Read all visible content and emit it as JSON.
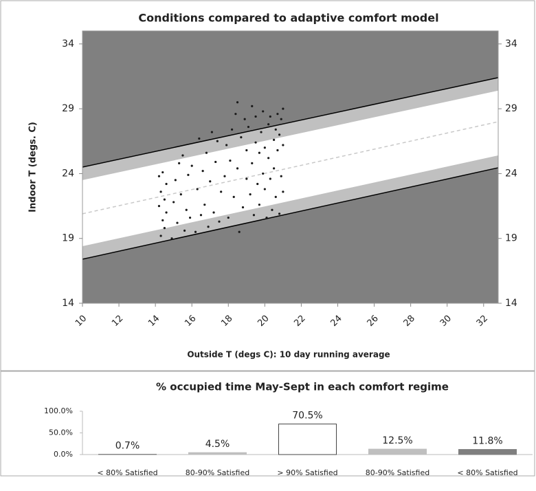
{
  "chart_data": [
    {
      "type": "scatter",
      "title": "Conditions compared to adaptive comfort model",
      "xlabel": "Outside T (degs C): 10 day running average",
      "ylabel": "Indoor T (degs. C)",
      "xlim": [
        10,
        32.8
      ],
      "ylim": [
        14,
        35
      ],
      "xticks": [
        10,
        12,
        14,
        16,
        18,
        20,
        22,
        24,
        26,
        28,
        30,
        32
      ],
      "yticks": [
        14,
        19,
        24,
        29,
        34
      ],
      "y2lim": [
        14,
        35
      ],
      "y2ticks": [
        14,
        19,
        24,
        29,
        34
      ],
      "grid": false,
      "color": "#1a1a1a",
      "band_x": [
        10,
        32.8
      ],
      "bands": [
        {
          "color": "#808080",
          "lower": [
            24.5,
            31.4
          ],
          "upper": [
            35,
            35
          ]
        },
        {
          "color": "#c0c0c0",
          "lower": [
            23.5,
            30.4
          ],
          "upper": [
            24.5,
            31.4
          ]
        },
        {
          "color": "#c0c0c0",
          "lower": [
            17.4,
            24.45
          ],
          "upper": [
            18.4,
            25.4
          ]
        },
        {
          "color": "#808080",
          "lower": [
            14,
            14
          ],
          "upper": [
            17.4,
            24.45
          ]
        }
      ],
      "lines": [
        {
          "color": "#000000",
          "dashed": false,
          "values": [
            24.5,
            31.4
          ]
        },
        {
          "color": "#000000",
          "dashed": false,
          "values": [
            17.4,
            24.45
          ]
        },
        {
          "color": "#c8c8c8",
          "dashed": true,
          "values": [
            20.9,
            28.0
          ]
        }
      ],
      "x": [
        14.2,
        14.2,
        14.3,
        14.3,
        14.4,
        14.4,
        14.5,
        14.5,
        14.6,
        14.6,
        14.9,
        15.0,
        15.1,
        15.2,
        15.3,
        15.4,
        15.5,
        15.6,
        15.7,
        15.8,
        15.9,
        16.0,
        16.2,
        16.3,
        16.4,
        16.5,
        16.6,
        16.7,
        16.8,
        16.9,
        17.0,
        17.1,
        17.2,
        17.3,
        17.4,
        17.5,
        17.6,
        17.8,
        17.9,
        18.0,
        18.1,
        18.2,
        18.3,
        18.4,
        18.5,
        18.5,
        18.6,
        18.7,
        18.8,
        18.9,
        19.0,
        19.0,
        19.1,
        19.2,
        19.3,
        19.3,
        19.4,
        19.5,
        19.5,
        19.6,
        19.7,
        19.7,
        19.8,
        19.9,
        19.9,
        20.0,
        20.0,
        20.1,
        20.2,
        20.2,
        20.3,
        20.3,
        20.4,
        20.5,
        20.5,
        20.6,
        20.6,
        20.7,
        20.7,
        20.8,
        20.8,
        20.9,
        20.9,
        21.0,
        21.0,
        21.0
      ],
      "values": [
        23.8,
        21.5,
        19.2,
        22.6,
        20.4,
        24.1,
        19.8,
        22.0,
        23.2,
        21.0,
        19.0,
        21.8,
        23.5,
        20.2,
        24.8,
        22.4,
        25.4,
        19.6,
        21.2,
        23.9,
        20.6,
        24.6,
        19.5,
        22.8,
        26.7,
        20.8,
        24.2,
        21.6,
        25.6,
        19.9,
        23.4,
        27.2,
        21.0,
        24.9,
        26.5,
        20.3,
        22.6,
        23.8,
        26.2,
        20.6,
        25.0,
        27.4,
        22.2,
        28.6,
        29.5,
        24.4,
        19.5,
        26.8,
        21.4,
        28.2,
        23.6,
        25.8,
        27.6,
        22.4,
        29.2,
        24.8,
        20.8,
        26.4,
        28.4,
        23.2,
        25.6,
        21.6,
        27.2,
        24.0,
        28.8,
        22.8,
        26.0,
        20.6,
        27.8,
        25.2,
        23.6,
        28.4,
        21.2,
        26.6,
        24.4,
        27.4,
        22.2,
        28.6,
        25.8,
        20.9,
        27.0,
        23.8,
        28.2,
        26.2,
        22.6,
        29.0
      ]
    },
    {
      "type": "bar",
      "title": "% occupied time May-Sept in each comfort regime",
      "categories": [
        "< 80% Satisfied",
        "80-90% Satisfied",
        "> 90% Satisfied",
        "80-90% Satisfied",
        "< 80% Satisfied"
      ],
      "values": [
        0.7,
        4.5,
        70.5,
        12.5,
        11.8
      ],
      "value_labels": [
        "0.7%",
        "4.5%",
        "70.5%",
        "12.5%",
        "11.8%"
      ],
      "colors": [
        "#7f7f7f",
        "#bfbfbf",
        "#ffffff",
        "#bfbfbf",
        "#7f7f7f"
      ],
      "ylim": [
        0,
        100
      ],
      "yticks": [
        {
          "value": 0,
          "label": "0.0%"
        },
        {
          "value": 50,
          "label": "50.0%"
        },
        {
          "value": 100,
          "label": "100.0%"
        }
      ],
      "grid": false
    }
  ]
}
